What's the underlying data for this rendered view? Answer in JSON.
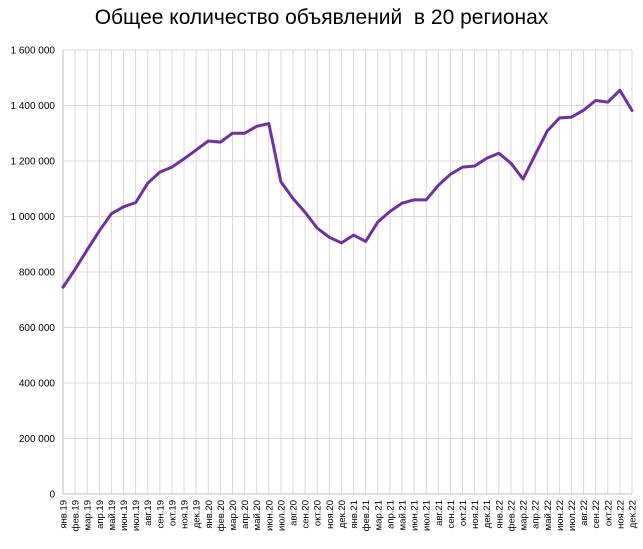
{
  "chart_data": {
    "type": "line",
    "title": "Общее количество объявлений  в 20 регионах",
    "xlabel": "",
    "ylabel": "",
    "ylim": [
      0,
      1600000
    ],
    "yticks": [
      "0",
      "200 000",
      "400 000",
      "600 000",
      "800 000",
      "1 000 000",
      "1 200 000",
      "1 400 000",
      "1 600 000"
    ],
    "grid": true,
    "legend": "none",
    "line_color": "#7030A0",
    "categories": [
      "янв.19",
      "фев.19",
      "мар.19",
      "апр.19",
      "май.19",
      "июн.19",
      "июл.19",
      "авг.19",
      "сен.19",
      "окт.19",
      "ноя.19",
      "дек.19",
      "янв.20",
      "фев.20",
      "мар.20",
      "апр.20",
      "май.20",
      "июн.20",
      "июл.20",
      "авг.20",
      "сен.20",
      "окт.20",
      "ноя.20",
      "дек.20",
      "янв.21",
      "фев.21",
      "мар.21",
      "апр.21",
      "май.21",
      "июн.21",
      "июл.21",
      "авг.21",
      "сен.21",
      "окт.21",
      "ноя.21",
      "дек.21",
      "янв.22",
      "фев.22",
      "мар.22",
      "апр.22",
      "май.22",
      "июн.22",
      "июл.22",
      "авг.22",
      "сен.22",
      "окт.22",
      "ноя.22",
      "дек.22"
    ],
    "series": [
      {
        "values": [
          745000,
          810000,
          880000,
          948000,
          1010000,
          1035000,
          1050000,
          1120000,
          1160000,
          1178000,
          1208000,
          1240000,
          1272000,
          1268000,
          1300000,
          1300000,
          1325000,
          1335000,
          1125000,
          1065000,
          1015000,
          958000,
          925000,
          905000,
          933000,
          910000,
          980000,
          1018000,
          1048000,
          1060000,
          1060000,
          1112000,
          1152000,
          1178000,
          1182000,
          1210000,
          1228000,
          1192000,
          1135000,
          1222000,
          1308000,
          1355000,
          1358000,
          1383000,
          1418000,
          1412000,
          1455000,
          1382000
        ]
      }
    ]
  }
}
